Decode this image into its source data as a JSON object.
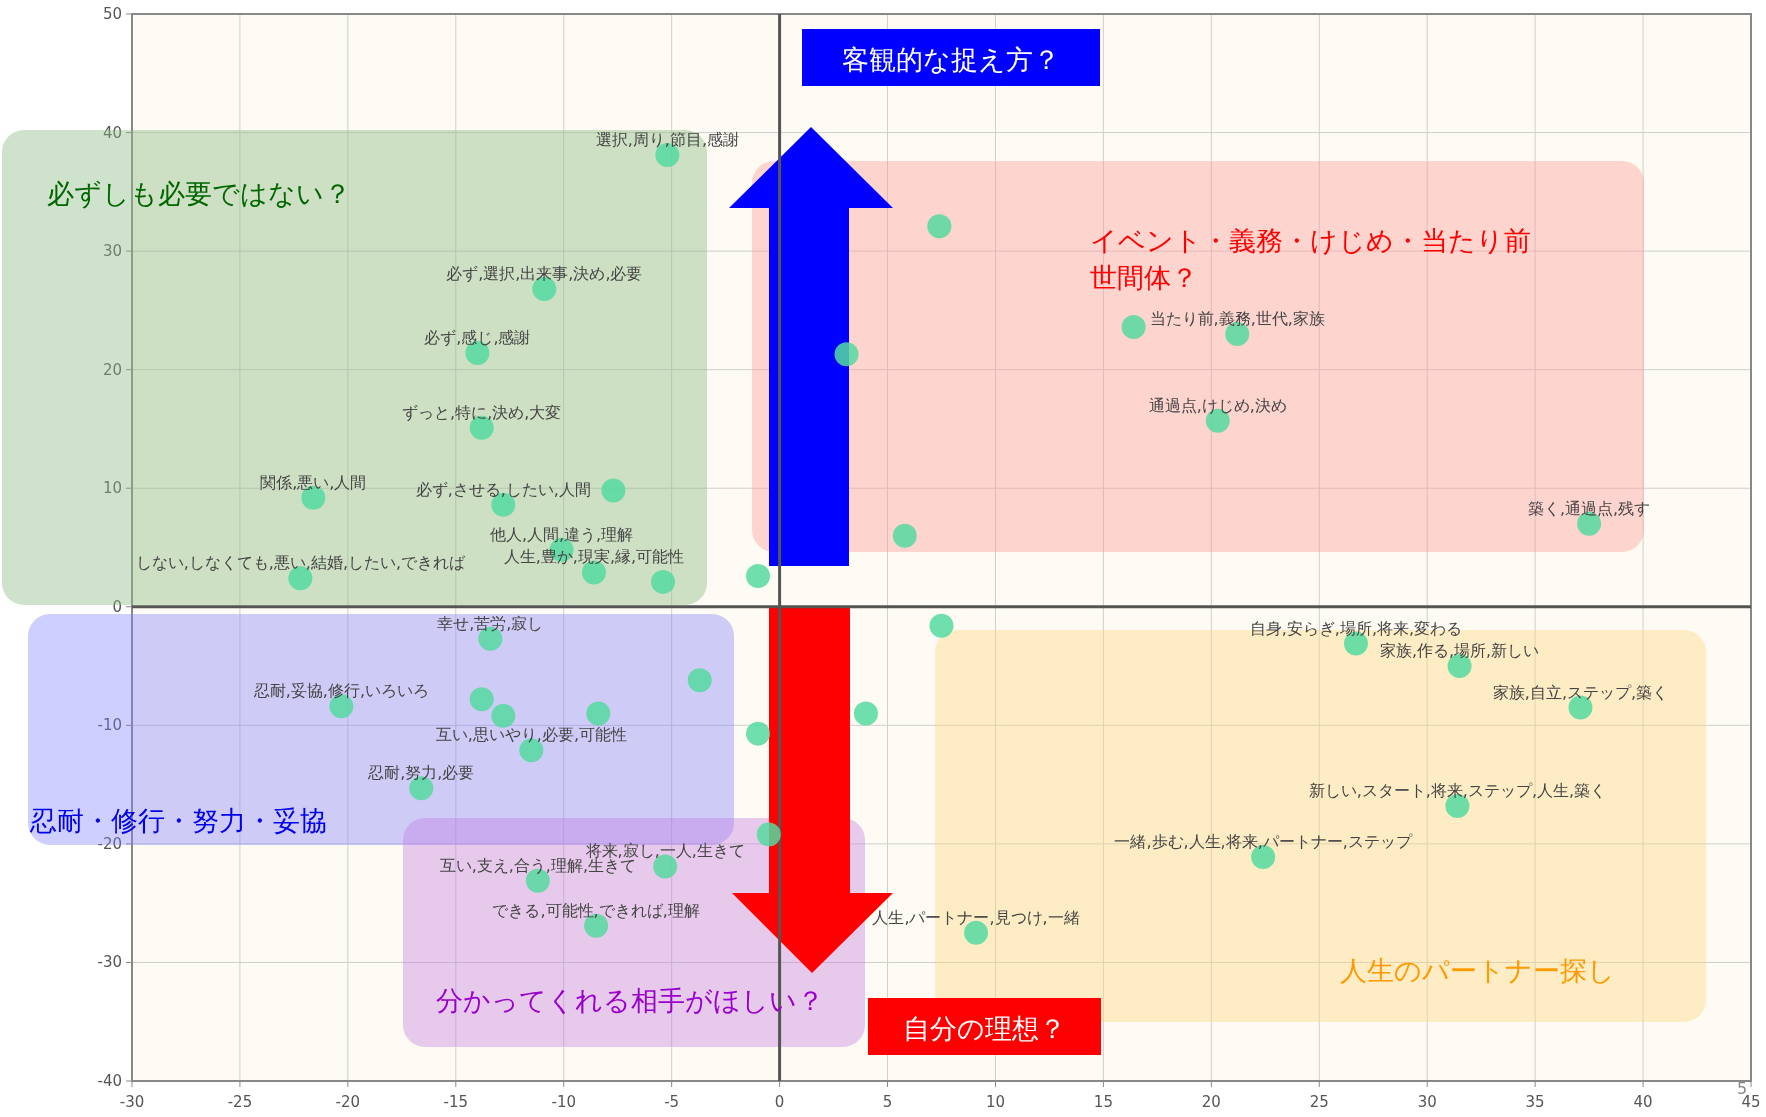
{
  "chart_data": {
    "type": "scatter",
    "xlim": [
      -30,
      45
    ],
    "ylim": [
      -40,
      50
    ],
    "xticks": [
      -30,
      -25,
      -20,
      -15,
      -10,
      -5,
      0,
      5,
      10,
      15,
      20,
      25,
      30,
      35,
      40,
      45
    ],
    "yticks": [
      -40,
      -30,
      -20,
      -10,
      0,
      10,
      20,
      30,
      40,
      50
    ],
    "grid": true,
    "marker": "circle",
    "series": [
      {
        "color": "#55d9a0",
        "x": [
          -5.2,
          -10.9,
          -14.0,
          -13.8,
          -21.6,
          -12.8,
          -7.7,
          -10.1,
          -8.6,
          -5.4,
          -22.2,
          -1.0,
          7.4,
          16.4,
          21.2,
          3.1,
          20.3,
          37.5,
          5.8,
          -13.4,
          -3.7,
          -20.3,
          -11.5,
          -16.6,
          -11.2,
          -5.3,
          -8.5,
          -0.5,
          9.1,
          7.5,
          26.7,
          31.5,
          37.1,
          31.4,
          22.4,
          4.0,
          -1.0,
          -13.8,
          -12.8,
          -8.4
        ],
        "values": [
          38.1,
          26.8,
          21.4,
          15.1,
          9.2,
          8.6,
          9.8,
          4.8,
          2.9,
          2.1,
          2.4,
          2.6,
          32.1,
          23.6,
          23.0,
          21.3,
          15.7,
          7.0,
          6.0,
          -2.7,
          -6.2,
          -8.4,
          -12.1,
          -15.3,
          -23.1,
          -21.9,
          -26.9,
          -19.2,
          -27.5,
          -1.6,
          -3.1,
          -5.0,
          -8.5,
          -16.8,
          -21.1,
          -9.0,
          -10.7,
          -7.8,
          -9.2,
          -9.0
        ]
      }
    ],
    "annotations": [
      "客観的な捉え方？",
      "自分の理想？",
      "必ずしも必要ではない？",
      "イベント・義務・けじめ・当たり前",
      "世間体？",
      "忍耐・修行・努力・妥協",
      "分かってくれる相手がほしい？",
      "人生のパートナー探し",
      "5",
      {
        "text": "選択,周り,節目,感謝",
        "x": -5.2,
        "y": 38.1
      },
      {
        "text": "必ず,選択,出来事,決め,必要",
        "x": -10.9,
        "y": 26.8
      },
      {
        "text": "必ず,感じ,感謝",
        "x": -14.0,
        "y": 21.4
      },
      {
        "text": "ずっと,特に,決め,大変",
        "x": -13.8,
        "y": 15.1
      },
      {
        "text": "関係,悪い,人間",
        "x": -21.6,
        "y": 9.2
      },
      {
        "text": "必ず,させる,したい,人間",
        "x": -12.8,
        "y": 8.6
      },
      {
        "text": "他人,人間,違う,理解",
        "x": -10.1,
        "y": 4.8
      },
      {
        "text": "人生,豊か,現実,縁,可能性",
        "x": -8.6,
        "y": 2.9
      },
      {
        "text": "しない,しなくても,悪い,結婚,したい,できれば",
        "x": -22.2,
        "y": 2.4
      },
      {
        "text": "通過点,けじめ,決め",
        "x": 20.3,
        "y": 15.7
      },
      {
        "text": "当たり前,義務,世代,家族",
        "x": 21.2,
        "y": 23.0
      },
      {
        "text": "築く,通過点,残す",
        "x": 37.5,
        "y": 7.0
      },
      {
        "text": "幸せ,苦労,寂し",
        "x": -13.4,
        "y": -2.7
      },
      {
        "text": "忍耐,妥協,修行,いろいろ",
        "x": -20.3,
        "y": -8.4
      },
      {
        "text": "互い,思いやり,必要,可能性",
        "x": -11.5,
        "y": -12.1
      },
      {
        "text": "忍耐,努力,必要",
        "x": -16.6,
        "y": -15.3
      },
      {
        "text": "互い,支え,合う,理解,生きて",
        "x": -11.2,
        "y": -23.1
      },
      {
        "text": "将来,寂し,一人,生きて",
        "x": -5.3,
        "y": -21.9
      },
      {
        "text": "できる,可能性,できれば,理解",
        "x": -8.5,
        "y": -26.9
      },
      {
        "text": "人生,パートナー,見つけ,一緒",
        "x": 9.1,
        "y": -27.5
      },
      {
        "text": "自身,安らぎ,場所,将来,変わる",
        "x": 26.7,
        "y": -3.1
      },
      {
        "text": "家族,作る,場所,新しい",
        "x": 31.5,
        "y": -5.0
      },
      {
        "text": "家族,自立,ステップ,築く",
        "x": 37.1,
        "y": -8.5
      },
      {
        "text": "新しい,スタート,将来,ステップ,人生,築く",
        "x": 31.4,
        "y": -16.8
      },
      {
        "text": "一緒,歩む,人生,将来,パートナー,ステップ",
        "x": 22.4,
        "y": -21.1
      }
    ]
  }
}
